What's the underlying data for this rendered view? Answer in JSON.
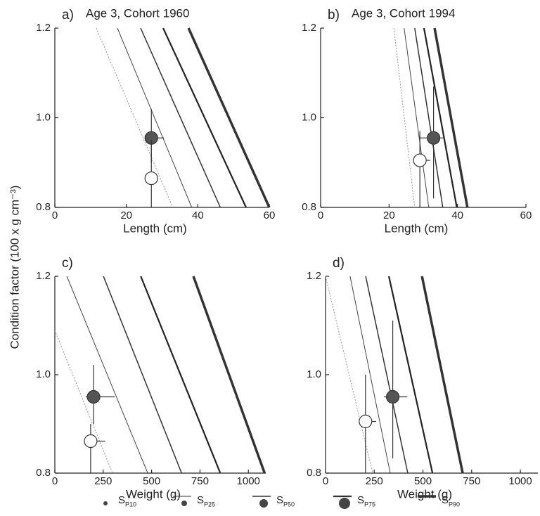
{
  "y_label": "Condition factor (100 x g cm⁻³)",
  "legend": {
    "symbol": "S",
    "entries": [
      "P10",
      "P25",
      "P50",
      "P75",
      "P90"
    ]
  },
  "chart_data": [
    {
      "type": "line",
      "letter": "a)",
      "title": "Age 3, Cohort 1960",
      "x_label": "Length (cm)",
      "xlim": [
        0,
        60
      ],
      "xticks": [
        0,
        20,
        40,
        60
      ],
      "ylim": [
        0.8,
        1.2
      ],
      "yticks": [
        0.8,
        {
          "value": 1,
          "label": "1.0"
        },
        1.2
      ],
      "series": [
        {
          "color": "#888",
          "x": [
            11.6,
            33
          ],
          "values": [
            1.2,
            0.8
          ]
        },
        {
          "color": "#444",
          "x": [
            17.5,
            38.3
          ],
          "values": [
            1.2,
            0.8
          ]
        },
        {
          "color": "#333",
          "x": [
            24,
            46.3
          ],
          "values": [
            1.2,
            0.8
          ]
        },
        {
          "color": "#222",
          "x": [
            30.3,
            53.5
          ],
          "values": [
            1.2,
            0.8
          ]
        },
        {
          "color": "#333",
          "x": [
            37.4,
            60
          ],
          "values": [
            1.2,
            0.8
          ]
        }
      ],
      "points": [
        {
          "x": 27,
          "y": 0.955,
          "xerr": [
            26,
            30.5
          ],
          "yerr": [
            0.9,
            1.02
          ],
          "color": "#555"
        },
        {
          "x": 27,
          "y": 0.865,
          "xerr": [
            27,
            27
          ],
          "yerr": [
            0.8,
            0.95
          ],
          "color": "#ffffff"
        }
      ]
    },
    {
      "type": "line",
      "letter": "b)",
      "title": "Age 3, Cohort 1994",
      "x_label": "Length (cm)",
      "xlim": [
        0,
        60
      ],
      "xticks": [
        0,
        20,
        40,
        60
      ],
      "ylim": [
        0.8,
        1.2
      ],
      "yticks": [
        0.8,
        {
          "value": 1,
          "label": "1.0"
        },
        1.2
      ],
      "series": [
        {
          "color": "#888",
          "x": [
            21.4,
            27.5
          ],
          "values": [
            1.2,
            0.8
          ]
        },
        {
          "color": "#444",
          "x": [
            24.4,
            31.6
          ],
          "values": [
            1.2,
            0.8
          ]
        },
        {
          "color": "#333",
          "x": [
            27.5,
            35.7
          ],
          "values": [
            1.2,
            0.8
          ]
        },
        {
          "color": "#222",
          "x": [
            30.2,
            39.8
          ],
          "values": [
            1.2,
            0.8
          ]
        },
        {
          "color": "#333",
          "x": [
            33.3,
            42.9
          ],
          "values": [
            1.2,
            0.8
          ]
        }
      ],
      "points": [
        {
          "x": 33,
          "y": 0.955,
          "xerr": [
            29,
            36
          ],
          "yerr": [
            0.82,
            1.07
          ],
          "color": "#555"
        },
        {
          "x": 29,
          "y": 0.905,
          "xerr": [
            29,
            32
          ],
          "yerr": [
            0.8,
            0.97
          ],
          "color": "#ffffff"
        }
      ]
    },
    {
      "type": "line",
      "letter": "c)",
      "x_label": "Weight (g)",
      "xlim": [
        0,
        1090
      ],
      "xticks": [
        0,
        250,
        500,
        750,
        1000
      ],
      "ylim": [
        0.8,
        1.2
      ],
      "yticks": [
        0.8,
        {
          "value": 1,
          "label": "1.0"
        },
        1.2
      ],
      "series": [
        {
          "color": "#888",
          "x": [
            0,
            298
          ],
          "values": [
            1.09,
            0.8
          ]
        },
        {
          "color": "#444",
          "x": [
            62,
            480
          ],
          "values": [
            1.2,
            0.8
          ]
        },
        {
          "color": "#333",
          "x": [
            251,
            655
          ],
          "values": [
            1.2,
            0.8
          ]
        },
        {
          "color": "#222",
          "x": [
            444,
            855
          ],
          "values": [
            1.2,
            0.8
          ]
        },
        {
          "color": "#333",
          "x": [
            716,
            1084
          ],
          "values": [
            1.2,
            0.8
          ]
        }
      ],
      "points": [
        {
          "x": 200,
          "y": 0.955,
          "xerr": [
            160,
            310
          ],
          "yerr": [
            0.9,
            1.02
          ],
          "color": "#555"
        },
        {
          "x": 185,
          "y": 0.865,
          "xerr": [
            160,
            260
          ],
          "yerr": [
            0.8,
            0.9
          ],
          "color": "#ffffff"
        }
      ]
    },
    {
      "type": "line",
      "letter": "d)",
      "x_label": "Weight (g)",
      "xlim": [
        0,
        1090
      ],
      "xticks": [
        0,
        250,
        500,
        750,
        1000
      ],
      "ylim": [
        0.8,
        1.2
      ],
      "yticks": [
        0.8,
        {
          "value": 1,
          "label": "1.0"
        },
        1.2
      ],
      "series": [
        {
          "color": "#888",
          "x": [
            0,
            242
          ],
          "values": [
            1.2,
            0.8
          ]
        },
        {
          "color": "#444",
          "x": [
            126,
            332
          ],
          "values": [
            1.2,
            0.8
          ]
        },
        {
          "color": "#333",
          "x": [
            206,
            422
          ],
          "values": [
            1.2,
            0.8
          ]
        },
        {
          "color": "#222",
          "x": [
            325,
            549
          ],
          "values": [
            1.2,
            0.8
          ]
        },
        {
          "color": "#333",
          "x": [
            495,
            704
          ],
          "values": [
            1.2,
            0.8
          ]
        }
      ],
      "points": [
        {
          "x": 345,
          "y": 0.955,
          "xerr": [
            300,
            420
          ],
          "yerr": [
            0.83,
            1.11
          ],
          "color": "#555"
        },
        {
          "x": 205,
          "y": 0.905,
          "xerr": [
            205,
            260
          ],
          "yerr": [
            0.8,
            1.0
          ],
          "color": "#ffffff"
        }
      ]
    }
  ]
}
